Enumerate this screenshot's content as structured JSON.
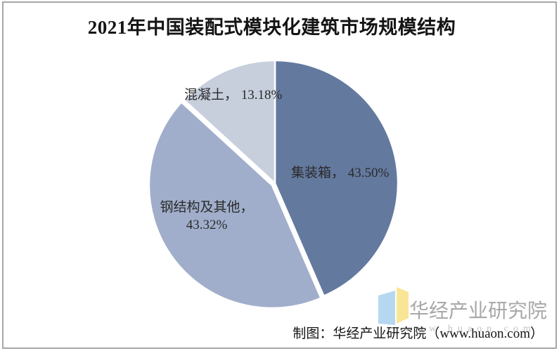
{
  "header": {
    "title": "2021年中国装配式模块化建筑市场规模结构"
  },
  "footer": {
    "caption": "制图：华经产业研究院（www.huaon.com）"
  },
  "watermark": {
    "brand": "华经产业研究院",
    "url": "www.huaon.com",
    "logo_colors": {
      "left_page": "#b5d8f0",
      "right_page": "#f8e596"
    }
  },
  "chart_data": {
    "type": "pie",
    "title": "2021年中国装配式模块化建筑市场规模结构",
    "unit": "%",
    "direction": "clockwise",
    "start_angle_deg": 0,
    "legend": "none",
    "slices": [
      {
        "name": "集装箱",
        "value": 43.5,
        "label": "集装箱， 43.50%",
        "color": "#64799e",
        "explode": 0
      },
      {
        "name": "钢结构及其他",
        "value": 43.32,
        "label_lines": [
          "钢结构及其他，",
          "43.32%"
        ],
        "color": "#a0aecb",
        "explode": 5
      },
      {
        "name": "混凝土",
        "value": 13.18,
        "label": "混凝土， 13.18%",
        "color": "#c7cfdd",
        "explode": 0
      }
    ]
  }
}
